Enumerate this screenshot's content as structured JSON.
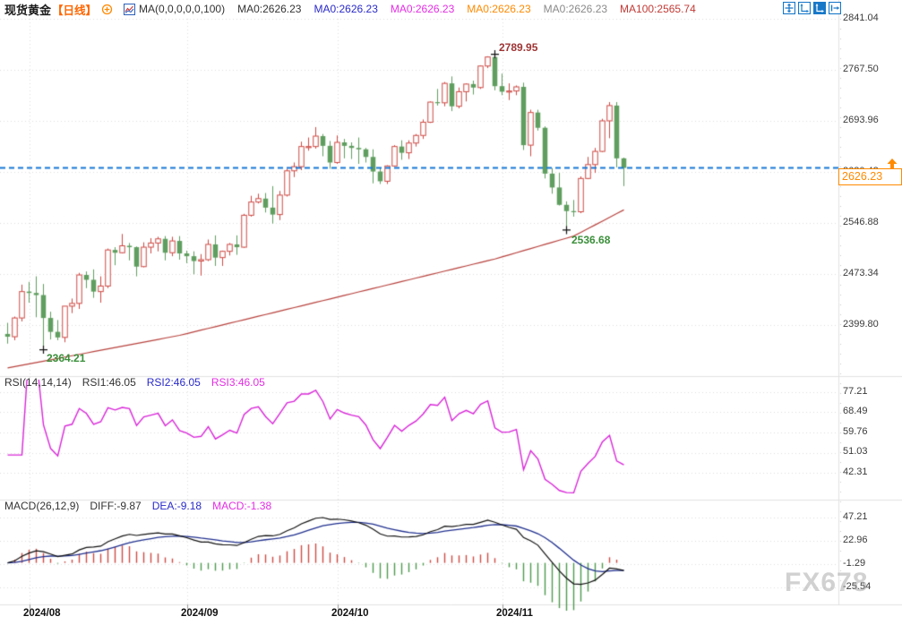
{
  "header": {
    "symbol": "现货黄金",
    "period": "【日线】",
    "ma_settings": "MA(0,0,0,0,0,100)",
    "ma_values": [
      {
        "text": "MA0:2626.23",
        "color": "#333333"
      },
      {
        "text": "MA0:2626.23",
        "color": "#2929c8"
      },
      {
        "text": "MA0:2626.23",
        "color": "#e32ee3"
      },
      {
        "text": "MA0:2626.23",
        "color": "#ff8a00"
      },
      {
        "text": "MA0:2626.23",
        "color": "#8a8a8a"
      },
      {
        "text": "MA100:2565.74",
        "color": "#c23a35"
      }
    ],
    "toolbar_icon_color": "#1878c8"
  },
  "rsi_header": {
    "title": "RSI(14,14,14)",
    "values": [
      {
        "text": "RSI1:46.05",
        "color": "#333333"
      },
      {
        "text": "RSI2:46.05",
        "color": "#2929c8"
      },
      {
        "text": "RSI3:46.05",
        "color": "#e32ee3"
      }
    ]
  },
  "macd_header": {
    "title": "MACD(26,12,9)",
    "values": [
      {
        "text": "DIFF:-9.87",
        "color": "#333333"
      },
      {
        "text": "DEA:-9.18",
        "color": "#2929c8"
      },
      {
        "text": "MACD:-1.38",
        "color": "#e32ee3"
      }
    ]
  },
  "axes": {
    "price_ticks": [
      "2841.04",
      "2767.50",
      "2693.96",
      "2620.42",
      "2546.88",
      "2473.34",
      "2399.80"
    ],
    "rsi_ticks": [
      "77.21",
      "68.49",
      "59.76",
      "51.03",
      "42.31"
    ],
    "macd_ticks": [
      "47.21",
      "22.96",
      "-1.29",
      "-25.54"
    ],
    "x_ticks": [
      "2024/08",
      "2024/09",
      "2024/10",
      "2024/11"
    ]
  },
  "price_marker": {
    "value": "2626.23",
    "color": "#ff8a00"
  },
  "watermark": "FX678",
  "chart_data": {
    "type": "candlestick",
    "title": "现货黄金 日线 (Spot Gold, daily)",
    "x_labels": [
      "2024/08",
      "2024/09",
      "2024/10",
      "2024/11"
    ],
    "month_start_indices": [
      3,
      25,
      46,
      69
    ],
    "price_axis": {
      "ticks": [
        2841.04,
        2767.5,
        2693.96,
        2620.42,
        2546.88,
        2473.34,
        2399.8
      ]
    },
    "current_price": 2626.23,
    "up_color": "#cd4a44",
    "down_color": "#5f9e5f",
    "current_price_line_color": "#1778d6",
    "grid_color": "#dedede",
    "ma100_color": "#b8433e",
    "ma100_last": 2565.74,
    "ma100_anchors": [
      [
        0,
        2338
      ],
      [
        24,
        2385
      ],
      [
        46,
        2440
      ],
      [
        68,
        2495
      ],
      [
        79,
        2528
      ],
      [
        86,
        2565.74
      ]
    ],
    "annotations": [
      {
        "text": "2789.95",
        "price": 2789.95,
        "candle_index": 68,
        "kind": "high",
        "color": "#9e3434"
      },
      {
        "text": "2536.68",
        "price": 2536.68,
        "candle_index": 78,
        "kind": "low",
        "color": "#3a8f3a"
      },
      {
        "text": "2364.21",
        "price": 2364.21,
        "candle_index": 5,
        "kind": "low",
        "color": "#3a8f3a"
      }
    ],
    "indicators": {
      "rsi": {
        "params": [
          14,
          14,
          14
        ],
        "last_values": [
          46.05,
          46.05,
          46.05
        ],
        "line_color": "#d926d9",
        "axis_ticks": [
          77.21,
          68.49,
          59.76,
          51.03,
          42.31
        ]
      },
      "macd": {
        "params": [
          26,
          12,
          9
        ],
        "diff": -9.87,
        "dea": -9.18,
        "macd": -1.38,
        "axis_ticks": [
          47.21,
          22.96,
          -1.29,
          -25.54
        ],
        "diff_color": "#111111",
        "dea_color": "#20308f",
        "hist_up_color": "#cd4a44",
        "hist_down_color": "#4e9a4e"
      }
    },
    "candles": [
      [
        "07/29",
        2387,
        2403,
        2373,
        2383
      ],
      [
        "07/30",
        2383,
        2412,
        2378,
        2410
      ],
      [
        "07/31",
        2410,
        2458,
        2405,
        2448
      ],
      [
        "08/01",
        2448,
        2462,
        2432,
        2446
      ],
      [
        "08/02",
        2446,
        2470,
        2411,
        2443
      ],
      [
        "08/05",
        2443,
        2459,
        2364.21,
        2410
      ],
      [
        "08/06",
        2410,
        2419,
        2379,
        2390
      ],
      [
        "08/07",
        2390,
        2407,
        2378,
        2382
      ],
      [
        "08/08",
        2382,
        2427,
        2375,
        2427
      ],
      [
        "08/09",
        2427,
        2438,
        2417,
        2431
      ],
      [
        "08/12",
        2431,
        2475,
        2423,
        2472
      ],
      [
        "08/13",
        2472,
        2477,
        2453,
        2465
      ],
      [
        "08/14",
        2465,
        2480,
        2439,
        2448
      ],
      [
        "08/15",
        2448,
        2470,
        2432,
        2456
      ],
      [
        "08/16",
        2456,
        2510,
        2453,
        2508
      ],
      [
        "08/19",
        2508,
        2512,
        2486,
        2504
      ],
      [
        "08/20",
        2504,
        2531,
        2503,
        2514
      ],
      [
        "08/21",
        2514,
        2518,
        2493,
        2512
      ],
      [
        "08/22",
        2512,
        2513,
        2470,
        2484
      ],
      [
        "08/23",
        2484,
        2519,
        2483,
        2512
      ],
      [
        "08/26",
        2512,
        2525,
        2503,
        2518
      ],
      [
        "08/27",
        2518,
        2527,
        2506,
        2524
      ],
      [
        "08/28",
        2524,
        2528,
        2493,
        2504
      ],
      [
        "08/29",
        2504,
        2527,
        2499,
        2521
      ],
      [
        "08/30",
        2521,
        2528,
        2494,
        2503
      ],
      [
        "09/02",
        2503,
        2507,
        2489,
        2499
      ],
      [
        "09/03",
        2499,
        2506,
        2473,
        2492
      ],
      [
        "09/04",
        2492,
        2502,
        2471,
        2494
      ],
      [
        "09/05",
        2494,
        2523,
        2492,
        2516
      ],
      [
        "09/06",
        2516,
        2529,
        2485,
        2497
      ],
      [
        "09/09",
        2497,
        2507,
        2485,
        2506
      ],
      [
        "09/10",
        2506,
        2518,
        2500,
        2516
      ],
      [
        "09/11",
        2516,
        2529,
        2501,
        2512
      ],
      [
        "09/12",
        2512,
        2560,
        2511,
        2558
      ],
      [
        "09/13",
        2558,
        2586,
        2556,
        2577
      ],
      [
        "09/16",
        2577,
        2589,
        2575,
        2582
      ],
      [
        "09/17",
        2582,
        2590,
        2562,
        2569
      ],
      [
        "09/18",
        2569,
        2600,
        2546,
        2559
      ],
      [
        "09/19",
        2559,
        2593,
        2551,
        2587
      ],
      [
        "09/20",
        2587,
        2625,
        2585,
        2622
      ],
      [
        "09/23",
        2622,
        2634,
        2613,
        2628
      ],
      [
        "09/24",
        2628,
        2664,
        2623,
        2657
      ],
      [
        "09/25",
        2657,
        2670,
        2651,
        2657
      ],
      [
        "09/26",
        2657,
        2685,
        2654,
        2672
      ],
      [
        "09/27",
        2672,
        2675,
        2643,
        2658
      ],
      [
        "09/30",
        2658,
        2665,
        2625,
        2634
      ],
      [
        "10/01",
        2634,
        2673,
        2632,
        2663
      ],
      [
        "10/02",
        2663,
        2668,
        2640,
        2658
      ],
      [
        "10/03",
        2658,
        2663,
        2639,
        2655
      ],
      [
        "10/04",
        2655,
        2670,
        2632,
        2653
      ],
      [
        "10/07",
        2653,
        2655,
        2634,
        2642
      ],
      [
        "10/08",
        2642,
        2653,
        2604,
        2621
      ],
      [
        "10/09",
        2621,
        2626,
        2603,
        2607
      ],
      [
        "10/10",
        2607,
        2630,
        2603,
        2629
      ],
      [
        "10/11",
        2629,
        2659,
        2628,
        2657
      ],
      [
        "10/14",
        2657,
        2666,
        2638,
        2648
      ],
      [
        "10/15",
        2648,
        2666,
        2639,
        2662
      ],
      [
        "10/16",
        2662,
        2675,
        2657,
        2673
      ],
      [
        "10/17",
        2673,
        2696,
        2668,
        2692
      ],
      [
        "10/18",
        2692,
        2722,
        2691,
        2721
      ],
      [
        "10/21",
        2721,
        2740,
        2716,
        2720
      ],
      [
        "10/22",
        2720,
        2750,
        2715,
        2748
      ],
      [
        "10/23",
        2748,
        2758,
        2708,
        2715
      ],
      [
        "10/24",
        2715,
        2742,
        2712,
        2736
      ],
      [
        "10/25",
        2736,
        2748,
        2722,
        2747
      ],
      [
        "10/28",
        2747,
        2752,
        2732,
        2742
      ],
      [
        "10/29",
        2742,
        2774,
        2740,
        2773
      ],
      [
        "10/30",
        2773,
        2787,
        2770,
        2786
      ],
      [
        "10/31",
        2786,
        2789.95,
        2738,
        2744
      ],
      [
        "11/01",
        2744,
        2762,
        2731,
        2736
      ],
      [
        "11/04",
        2736,
        2748,
        2724,
        2737
      ],
      [
        "11/05",
        2737,
        2745,
        2731,
        2743
      ],
      [
        "11/06",
        2743,
        2749,
        2652,
        2659
      ],
      [
        "11/07",
        2659,
        2710,
        2643,
        2706
      ],
      [
        "11/08",
        2706,
        2710,
        2680,
        2684
      ],
      [
        "11/11",
        2684,
        2686,
        2611,
        2618
      ],
      [
        "11/12",
        2618,
        2626,
        2589,
        2598
      ],
      [
        "11/13",
        2598,
        2619,
        2572,
        2573
      ],
      [
        "11/14",
        2573,
        2578,
        2536.68,
        2564
      ],
      [
        "11/15",
        2564,
        2580,
        2556,
        2563
      ],
      [
        "11/18",
        2563,
        2614,
        2561,
        2611
      ],
      [
        "11/19",
        2611,
        2642,
        2610,
        2631
      ],
      [
        "11/20",
        2631,
        2655,
        2619,
        2650
      ],
      [
        "11/21",
        2650,
        2697,
        2649,
        2694
      ],
      [
        "11/22",
        2694,
        2721,
        2669,
        2716
      ],
      [
        "11/25",
        2716,
        2721,
        2627,
        2640
      ],
      [
        "11/26",
        2640,
        2641,
        2600,
        2626.23
      ]
    ]
  }
}
